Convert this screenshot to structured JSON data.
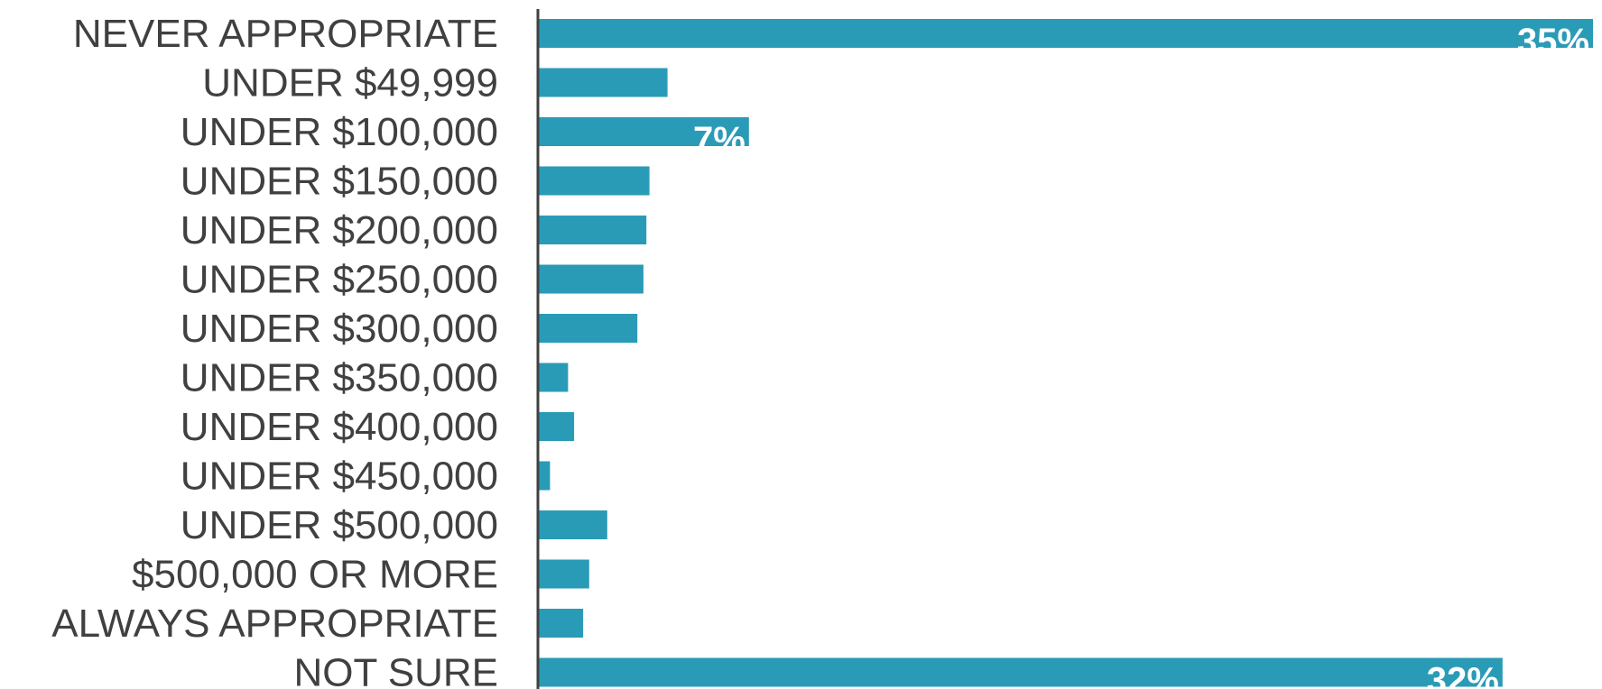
{
  "chart_data": {
    "type": "bar",
    "orientation": "horizontal",
    "categories": [
      "NEVER APPROPRIATE",
      "UNDER $49,999",
      "UNDER $100,000",
      "UNDER $150,000",
      "UNDER $200,000",
      "UNDER $250,000",
      "UNDER $300,000",
      "UNDER $350,000",
      "UNDER $400,000",
      "UNDER $450,000",
      "UNDER $500,000",
      "$500,000 OR MORE",
      "ALWAYS APPROPRIATE",
      "NOT SURE"
    ],
    "values": [
      35,
      4.3,
      7,
      3.7,
      3.6,
      3.5,
      3.3,
      1,
      1.2,
      0.4,
      2.3,
      1.7,
      1.5,
      32
    ],
    "data_labels": [
      "35%",
      "",
      "7%",
      "",
      "",
      "",
      "",
      "",
      "",
      "",
      "",
      "",
      "",
      "32%"
    ],
    "xlim": [
      0,
      35
    ],
    "grid": false,
    "legend": "none",
    "title": "",
    "xlabel": "",
    "ylabel": "",
    "colors": {
      "bar": "#2a9bb6",
      "axis": "#404040",
      "category_text": "#404040",
      "data_label_text": "#ffffff"
    }
  }
}
